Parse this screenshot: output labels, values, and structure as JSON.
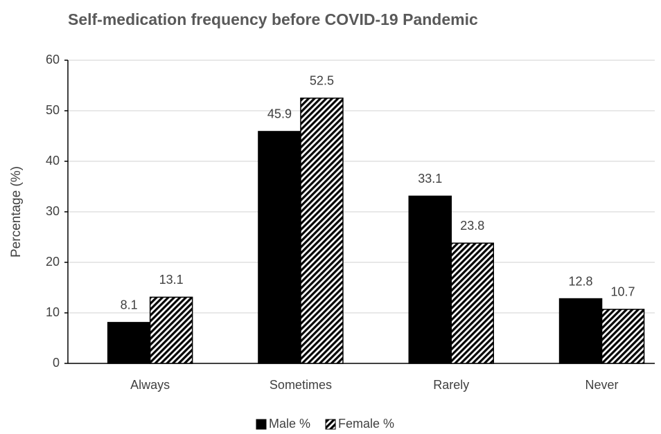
{
  "chart_data": {
    "type": "bar",
    "title": "Self-medication frequency before COVID-19 Pandemic",
    "ylabel": "Percentage (%)",
    "categories": [
      "Always",
      "Sometimes",
      "Rarely",
      "Never"
    ],
    "series": [
      {
        "name": "Male %",
        "color": "#000000",
        "values": [
          8.1,
          45.9,
          33.1,
          12.8
        ]
      },
      {
        "name": "Female %",
        "color": "#000000",
        "pattern": "diagonal-hatch",
        "values": [
          13.1,
          52.5,
          23.8,
          10.7
        ]
      }
    ],
    "ylim": [
      0,
      60
    ],
    "yticks": [
      0,
      10,
      20,
      30,
      40,
      50,
      60
    ],
    "grid": true,
    "legend": "bottom"
  }
}
